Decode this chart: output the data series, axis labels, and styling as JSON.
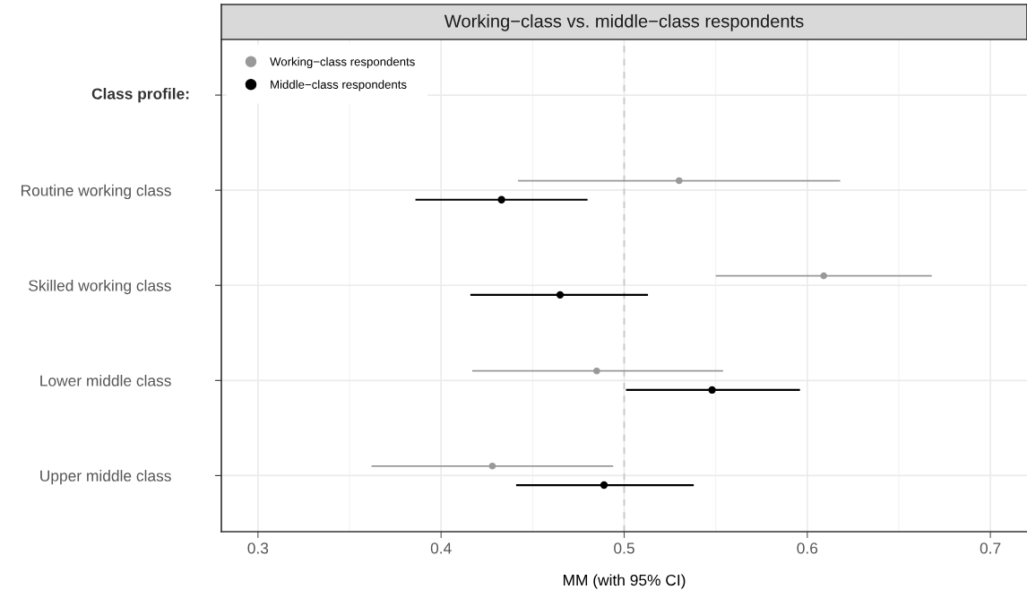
{
  "chart_data": {
    "type": "scatter",
    "orientation": "horizontal",
    "title": "Working−class vs. middle−class respondents",
    "xlabel": "MM (with 95% CI)",
    "ylabel": "Class profile:",
    "categories": [
      null,
      "Routine working class",
      "Skilled working class",
      "Lower middle class",
      "Upper middle class"
    ],
    "series": [
      {
        "name": "Working−class respondents",
        "color": "#999999",
        "values": [
          null,
          0.53,
          0.609,
          0.485,
          0.428
        ],
        "errors": [
          null,
          [
            0.442,
            0.618
          ],
          [
            0.55,
            0.668
          ],
          [
            0.417,
            0.554
          ],
          [
            0.362,
            0.494
          ]
        ]
      },
      {
        "name": "Middle−class respondents",
        "color": "#000000",
        "values": [
          null,
          0.433,
          0.465,
          0.548,
          0.489
        ],
        "errors": [
          null,
          [
            0.386,
            0.48
          ],
          [
            0.416,
            0.513
          ],
          [
            0.501,
            0.596
          ],
          [
            0.441,
            0.538
          ]
        ]
      }
    ],
    "xlim": [
      0.28,
      0.72
    ],
    "xticks": [
      0.3,
      0.4,
      0.5,
      0.6,
      0.7
    ],
    "ref_lines": [
      {
        "axis": "x",
        "value": 0.5,
        "color": "#c8c8c8",
        "line_style": "dashed"
      }
    ],
    "grid": true,
    "legend": "top left",
    "marker": "circle"
  }
}
